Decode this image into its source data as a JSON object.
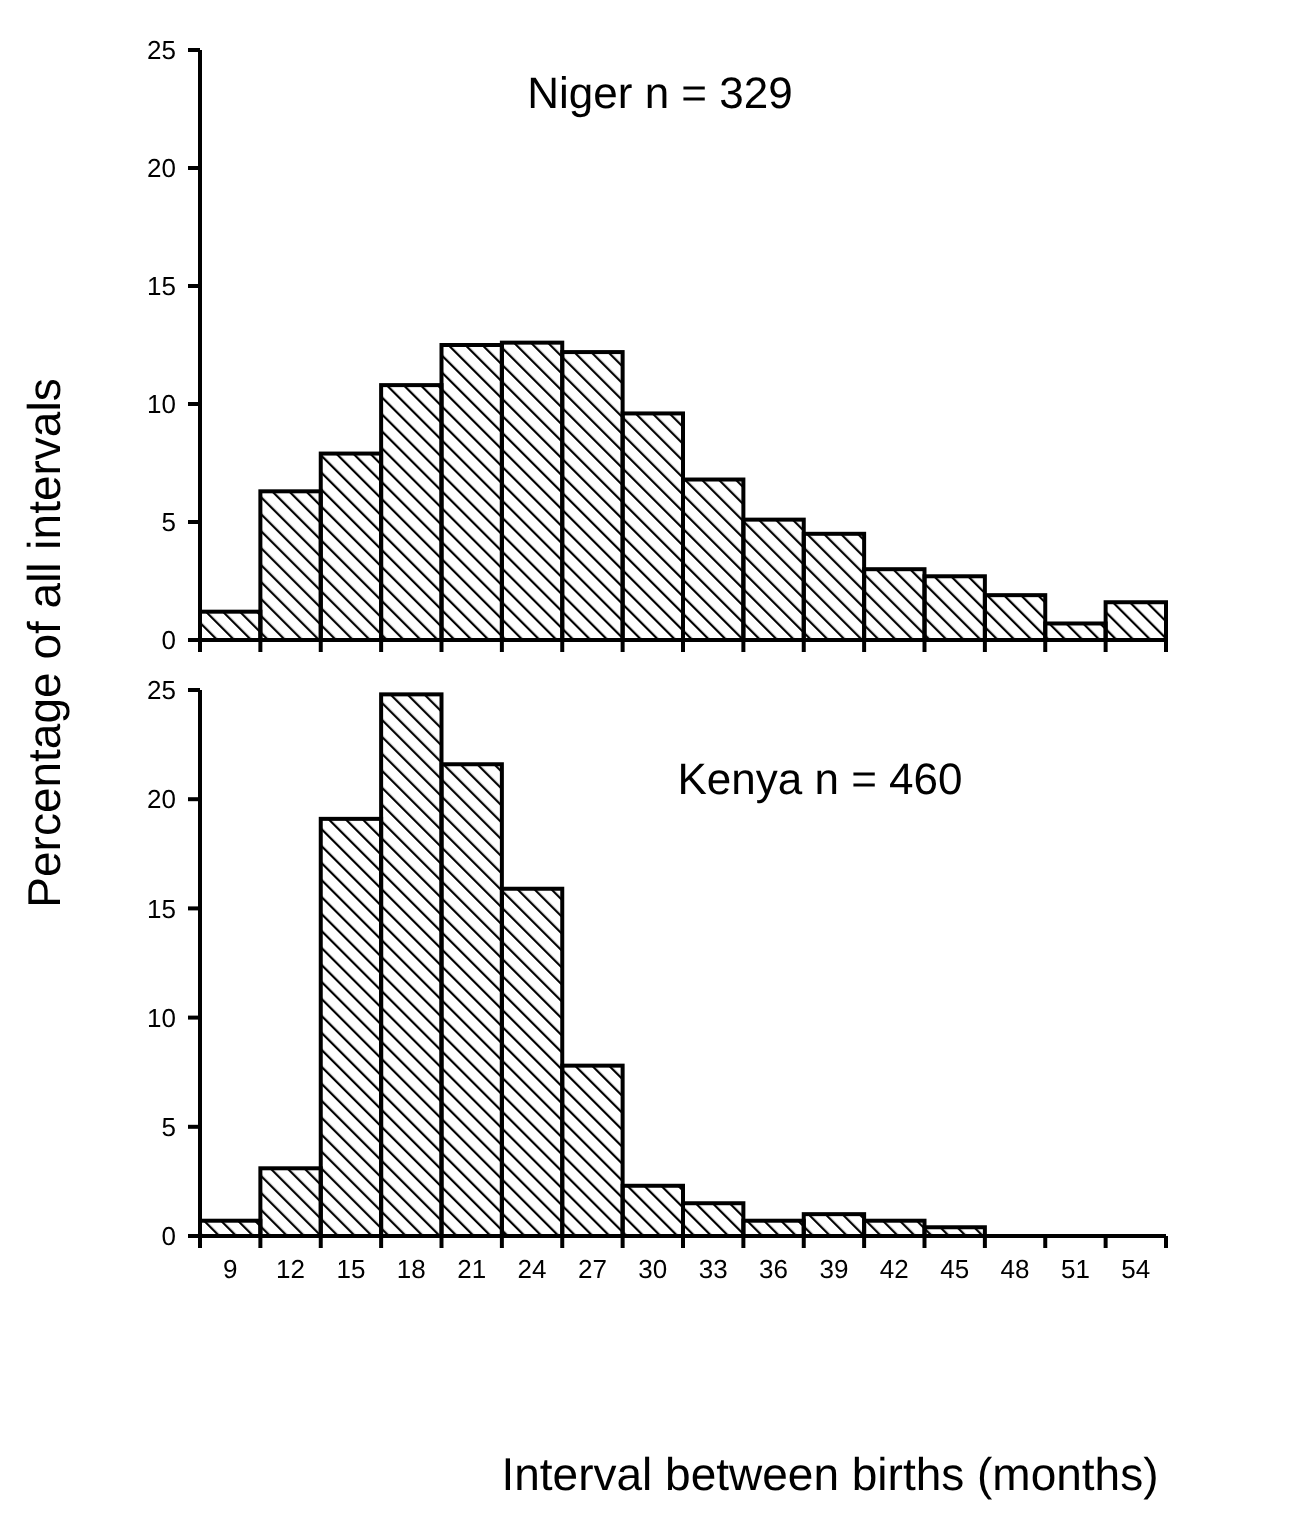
{
  "chart_data": [
    {
      "type": "bar",
      "title": "Niger n = 329",
      "ylabel": "Percentage of all intervals",
      "categories": [
        null,
        null,
        null,
        null,
        null,
        null,
        null,
        null,
        null,
        null,
        null,
        null,
        null,
        null,
        null,
        null
      ],
      "series": [
        {
          "color": "#000000",
          "values": [
            1.2,
            6.3,
            7.9,
            10.8,
            12.5,
            12.6,
            12.2,
            9.6,
            6.8,
            5.1,
            4.5,
            3.0,
            2.7,
            1.9,
            0.7,
            1.6
          ]
        }
      ],
      "ylim": [
        0,
        25
      ],
      "yticks": [
        0,
        5,
        10,
        15,
        20,
        25
      ],
      "tick_labels": "y"
    },
    {
      "type": "bar",
      "title": "Kenya n = 460",
      "xlabel": "Interval between births (months)",
      "categories": [
        "9",
        "12",
        "15",
        "18",
        "21",
        "24",
        "27",
        "30",
        "33",
        "36",
        "39",
        "42",
        "45",
        "48",
        "51",
        "54"
      ],
      "series": [
        {
          "color": "#000000",
          "values": [
            0.7,
            3.1,
            19.1,
            24.8,
            21.6,
            15.9,
            7.8,
            2.3,
            1.5,
            0.7,
            1.0,
            0.7,
            0.4,
            0,
            0,
            0
          ]
        }
      ],
      "ylim": [
        0,
        25
      ],
      "yticks": [
        0,
        5,
        10,
        15,
        20,
        25
      ]
    }
  ]
}
